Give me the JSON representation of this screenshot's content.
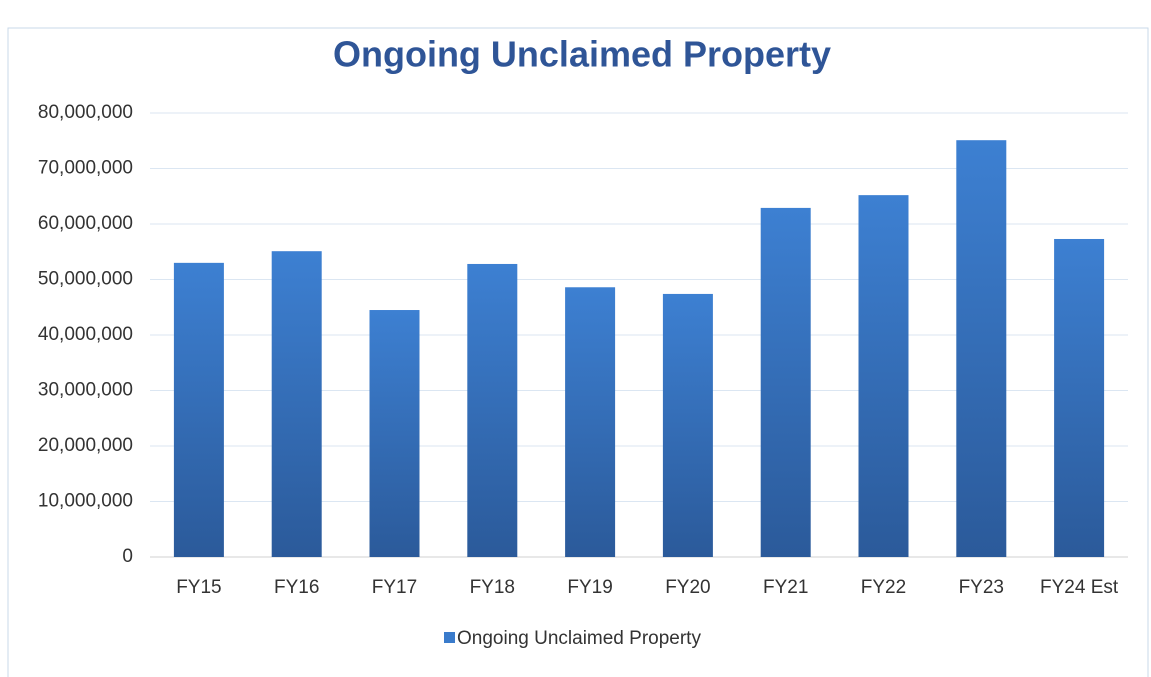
{
  "chart_data": {
    "type": "bar",
    "title": "Ongoing Unclaimed Property",
    "categories": [
      "FY15",
      "FY16",
      "FY17",
      "FY18",
      "FY19",
      "FY20",
      "FY21",
      "FY22",
      "FY23",
      "FY24 Est"
    ],
    "series": [
      {
        "name": "Ongoing Unclaimed Property",
        "color": "#3a7bcb",
        "values": [
          53000000,
          55100000,
          44500000,
          52800000,
          48600000,
          47400000,
          62900000,
          65200000,
          75100000,
          57300000
        ]
      }
    ],
    "ylim": [
      0,
      80000000
    ],
    "yticks": [
      0,
      {
        "value": 10000000,
        "label": "10,000,000"
      },
      {
        "value": 20000000,
        "label": "20,000,000"
      },
      {
        "value": 30000000,
        "label": "30,000,000"
      },
      {
        "value": 40000000,
        "label": "40,000,000"
      },
      {
        "value": 50000000,
        "label": "50,000,000"
      },
      {
        "value": 60000000,
        "label": "60,000,000"
      },
      {
        "value": 70000000,
        "label": "70,000,000"
      },
      {
        "value": 80000000,
        "label": "80,000,000"
      }
    ],
    "grid": true,
    "legend": "bottom"
  }
}
